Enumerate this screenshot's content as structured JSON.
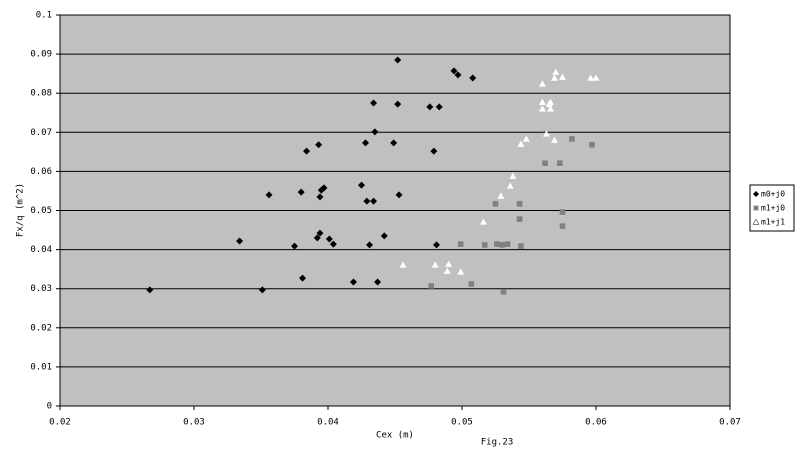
{
  "chart_data": {
    "type": "scatter",
    "x_label": "Cex (m)",
    "y_label": "Fx/q (m^2)",
    "caption": "Fig.23",
    "xlim": [
      0.02,
      0.07
    ],
    "xticks": [
      0.02,
      0.03,
      0.04,
      0.05,
      0.06,
      0.07
    ],
    "ylim": [
      0,
      0.1
    ],
    "yticks": [
      0,
      0.01,
      0.02,
      0.03,
      0.04,
      0.05,
      0.06,
      0.07,
      0.08,
      0.09,
      0.1
    ],
    "grid": true,
    "legend": "right",
    "background": "#c0c0c0",
    "series": [
      {
        "name": "m0+j0",
        "color": "#000000",
        "marker": "diamond",
        "x": [
          0.0267,
          0.0351,
          0.0334,
          0.0356,
          0.038,
          0.0375,
          0.0381,
          0.0384,
          0.0393,
          0.0394,
          0.0395,
          0.0397,
          0.0392,
          0.0394,
          0.0401,
          0.0404,
          0.0419,
          0.0425,
          0.0428,
          0.0429,
          0.0434,
          0.0431,
          0.0434,
          0.0435,
          0.0437,
          0.0442,
          0.0449,
          0.0452,
          0.0453,
          0.0452,
          0.0476,
          0.0483,
          0.0479,
          0.0481,
          0.0494,
          0.0497,
          0.0508
        ],
        "values": [
          0.0297,
          0.0297,
          0.0422,
          0.054,
          0.0547,
          0.0409,
          0.0327,
          0.0652,
          0.0668,
          0.0535,
          0.0552,
          0.0558,
          0.043,
          0.0442,
          0.0427,
          0.0414,
          0.0317,
          0.0565,
          0.0673,
          0.0524,
          0.0524,
          0.0412,
          0.0775,
          0.0701,
          0.0317,
          0.0435,
          0.0673,
          0.0772,
          0.054,
          0.0885,
          0.0765,
          0.0765,
          0.0652,
          0.0412,
          0.0857,
          0.0847,
          0.0839
        ]
      },
      {
        "name": "m1+j0",
        "color": "#808080",
        "marker": "square",
        "x": [
          0.0477,
          0.0499,
          0.0507,
          0.0517,
          0.0525,
          0.0526,
          0.053,
          0.0534,
          0.0531,
          0.0543,
          0.0543,
          0.0544,
          0.0562,
          0.0573,
          0.0575,
          0.0575,
          0.0582,
          0.0597
        ],
        "values": [
          0.0307,
          0.0414,
          0.0312,
          0.0412,
          0.0517,
          0.0414,
          0.0412,
          0.0414,
          0.0292,
          0.0517,
          0.0478,
          0.0409,
          0.0621,
          0.0621,
          0.0496,
          0.046,
          0.0683,
          0.0668
        ]
      },
      {
        "name": "m1+j1",
        "color": "#ffffff",
        "marker": "triangle",
        "x": [
          0.0456,
          0.048,
          0.0489,
          0.049,
          0.0499,
          0.0516,
          0.0529,
          0.0536,
          0.0538,
          0.0544,
          0.0548,
          0.056,
          0.056,
          0.056,
          0.0563,
          0.0565,
          0.0566,
          0.0566,
          0.057,
          0.0569,
          0.0575,
          0.0569,
          0.0596,
          0.06
        ],
        "values": [
          0.0361,
          0.0361,
          0.0345,
          0.0363,
          0.0343,
          0.0471,
          0.0537,
          0.0563,
          0.0588,
          0.067,
          0.0683,
          0.0824,
          0.0777,
          0.076,
          0.0696,
          0.0772,
          0.076,
          0.0777,
          0.0854,
          0.0839,
          0.0841,
          0.068,
          0.0839,
          0.0839
        ]
      }
    ]
  }
}
